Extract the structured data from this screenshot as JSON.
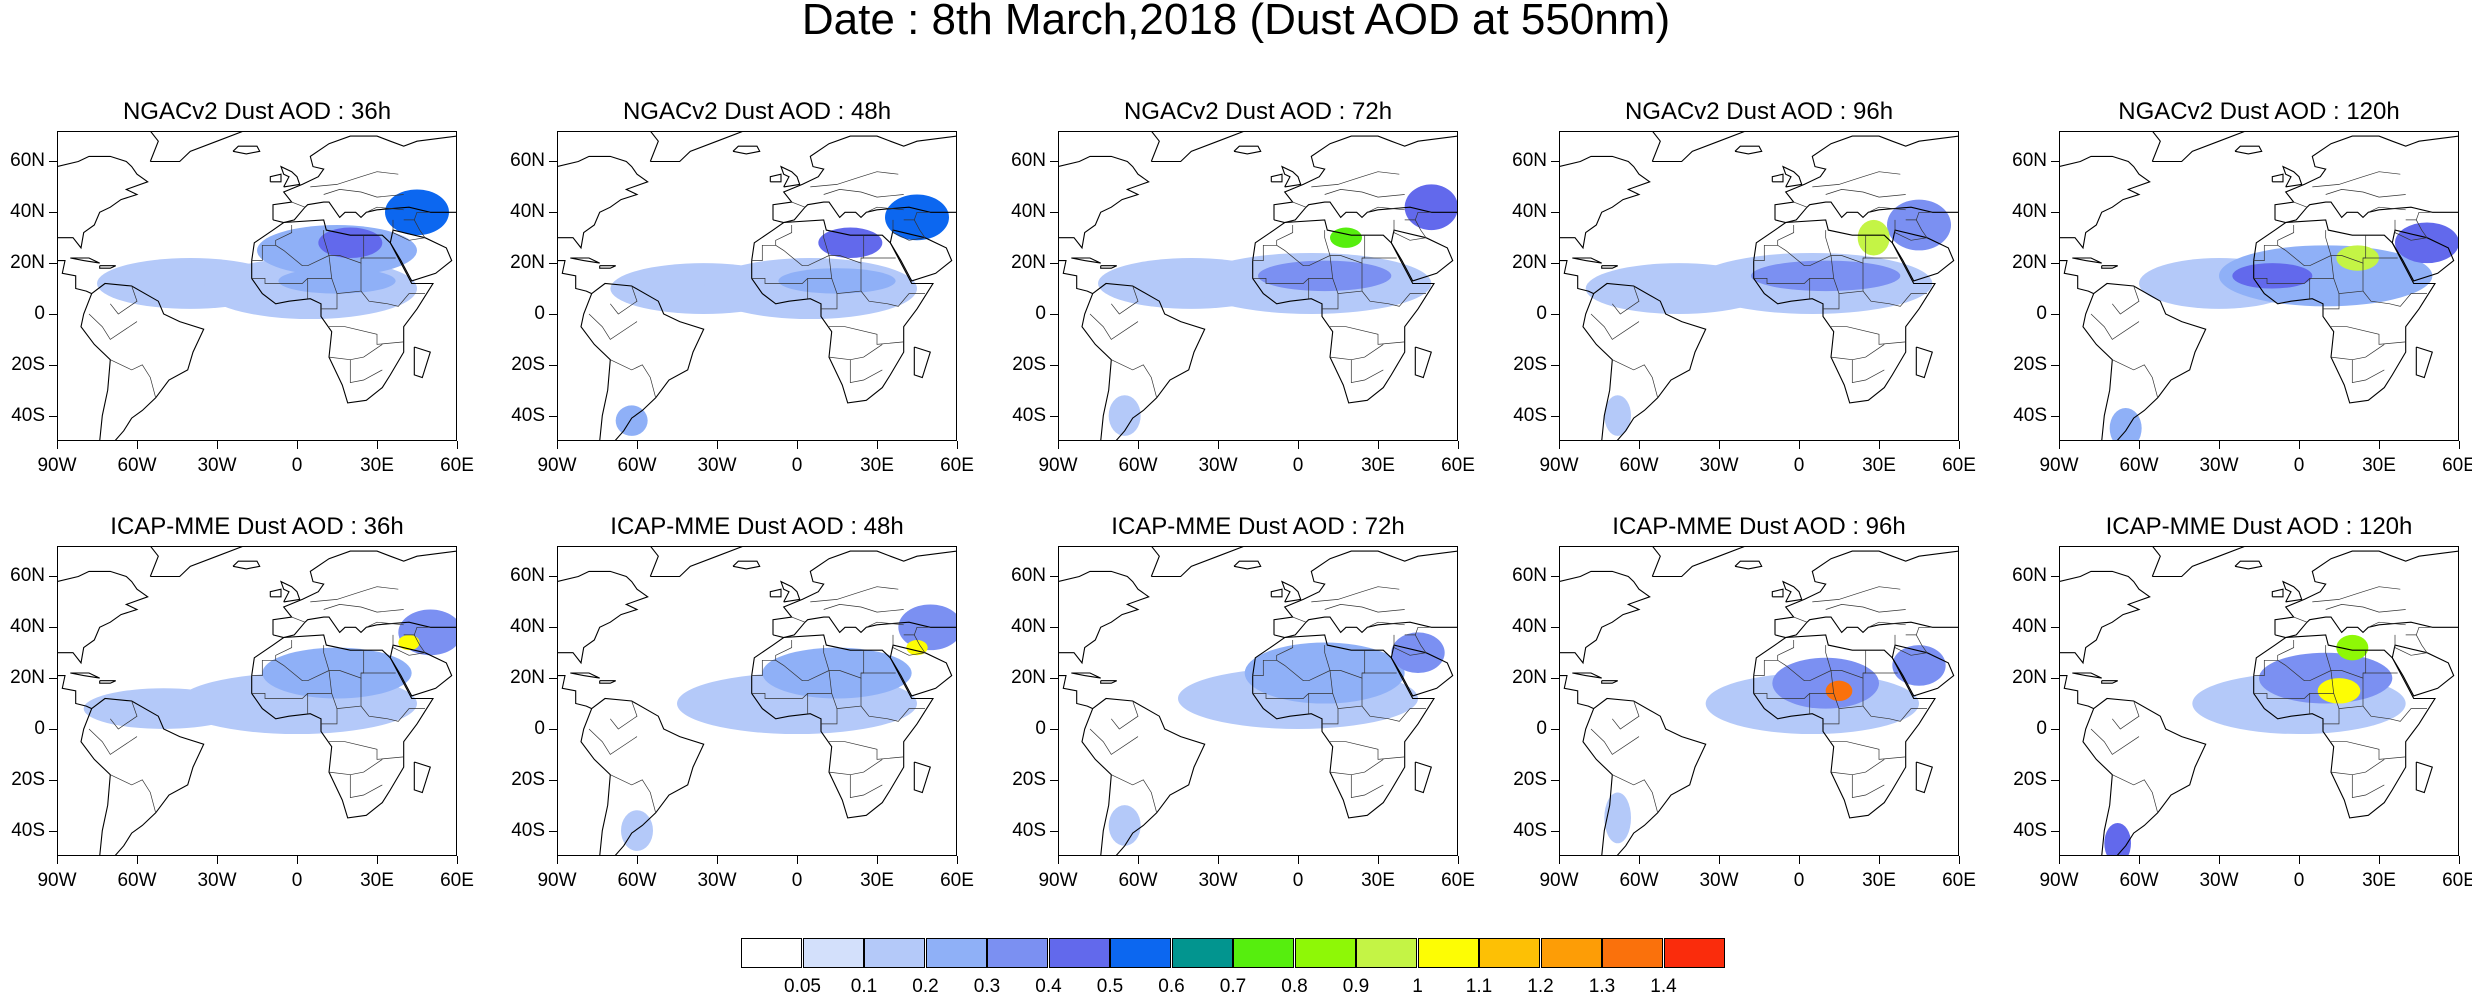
{
  "title": "Date : 8th March,2018 (Dust AOD at 550nm)",
  "panels": [
    {
      "title": "NGACv2 Dust AOD : 36h",
      "plumes": [
        [
          15,
          13,
          22,
          5,
          0.28
        ],
        [
          20,
          28,
          12,
          6,
          0.4
        ],
        [
          45,
          40,
          12,
          9,
          0.5
        ],
        [
          5,
          10,
          40,
          12,
          0.15
        ],
        [
          -40,
          12,
          35,
          10,
          0.12
        ],
        [
          15,
          25,
          30,
          10,
          0.25
        ]
      ]
    },
    {
      "title": "NGACv2 Dust AOD : 48h",
      "plumes": [
        [
          15,
          13,
          22,
          5,
          0.28
        ],
        [
          20,
          28,
          12,
          6,
          0.4
        ],
        [
          45,
          38,
          12,
          9,
          0.5
        ],
        [
          5,
          10,
          40,
          12,
          0.15
        ],
        [
          -35,
          10,
          35,
          10,
          0.12
        ],
        [
          -62,
          -42,
          6,
          6,
          0.22
        ]
      ]
    },
    {
      "title": "NGACv2 Dust AOD : 72h",
      "plumes": [
        [
          10,
          15,
          25,
          6,
          0.35
        ],
        [
          18,
          30,
          6,
          4,
          0.75
        ],
        [
          50,
          42,
          10,
          9,
          0.45
        ],
        [
          5,
          12,
          45,
          12,
          0.15
        ],
        [
          -40,
          12,
          35,
          10,
          0.12
        ],
        [
          -65,
          -40,
          6,
          8,
          0.18
        ]
      ]
    },
    {
      "title": "NGACv2 Dust AOD : 96h",
      "plumes": [
        [
          28,
          30,
          6,
          7,
          0.95
        ],
        [
          10,
          15,
          28,
          6,
          0.35
        ],
        [
          45,
          35,
          12,
          10,
          0.35
        ],
        [
          5,
          12,
          45,
          12,
          0.15
        ],
        [
          -45,
          10,
          35,
          10,
          0.12
        ],
        [
          -68,
          -40,
          5,
          8,
          0.18
        ]
      ]
    },
    {
      "title": "NGACv2 Dust AOD : 120h",
      "plumes": [
        [
          22,
          22,
          8,
          5,
          0.95
        ],
        [
          -10,
          15,
          15,
          5,
          0.4
        ],
        [
          48,
          28,
          12,
          8,
          0.45
        ],
        [
          10,
          15,
          40,
          12,
          0.2
        ],
        [
          -30,
          12,
          30,
          10,
          0.12
        ],
        [
          -65,
          -45,
          6,
          8,
          0.2
        ]
      ]
    },
    {
      "title": "ICAP-MME Dust AOD : 36h",
      "plumes": [
        [
          42,
          34,
          4,
          3,
          1.0
        ],
        [
          15,
          22,
          28,
          10,
          0.25
        ],
        [
          50,
          38,
          12,
          9,
          0.35
        ],
        [
          0,
          10,
          45,
          12,
          0.12
        ],
        [
          -50,
          8,
          30,
          8,
          0.1
        ]
      ]
    },
    {
      "title": "ICAP-MME Dust AOD : 48h",
      "plumes": [
        [
          45,
          32,
          4,
          3,
          1.0
        ],
        [
          15,
          22,
          28,
          10,
          0.25
        ],
        [
          50,
          40,
          12,
          9,
          0.3
        ],
        [
          0,
          10,
          45,
          12,
          0.12
        ],
        [
          -60,
          -40,
          6,
          8,
          0.15
        ]
      ]
    },
    {
      "title": "ICAP-MME Dust AOD : 72h",
      "plumes": [
        [
          10,
          22,
          30,
          12,
          0.28
        ],
        [
          45,
          30,
          10,
          8,
          0.35
        ],
        [
          0,
          12,
          45,
          12,
          0.13
        ],
        [
          -65,
          -38,
          6,
          8,
          0.15
        ]
      ]
    },
    {
      "title": "ICAP-MME Dust AOD : 96h",
      "plumes": [
        [
          15,
          15,
          5,
          4,
          1.3
        ],
        [
          10,
          18,
          20,
          10,
          0.3
        ],
        [
          45,
          25,
          10,
          8,
          0.35
        ],
        [
          5,
          10,
          40,
          12,
          0.12
        ],
        [
          -68,
          -35,
          5,
          10,
          0.15
        ]
      ]
    },
    {
      "title": "ICAP-MME Dust AOD : 120h",
      "plumes": [
        [
          15,
          15,
          8,
          5,
          1.05
        ],
        [
          20,
          32,
          6,
          5,
          0.85
        ],
        [
          10,
          20,
          25,
          10,
          0.3
        ],
        [
          0,
          10,
          40,
          12,
          0.13
        ],
        [
          -68,
          -45,
          5,
          8,
          0.45
        ]
      ]
    }
  ],
  "lat_labels": [
    "60N",
    "40N",
    "20N",
    "0",
    "20S",
    "40S"
  ],
  "lon_labels": [
    "90W",
    "60W",
    "30W",
    "0",
    "30E",
    "60E"
  ],
  "colorbar": {
    "colors": [
      "#ffffff",
      "#d3e0fb",
      "#b4c9f9",
      "#8fb0f7",
      "#7b90f2",
      "#6269ec",
      "#0c67f0",
      "#02958f",
      "#56ee0e",
      "#8ef806",
      "#c4f445",
      "#fdfd04",
      "#fdc005",
      "#fd9d06",
      "#fa710c",
      "#fa2c0c"
    ],
    "labels": [
      "0.05",
      "0.1",
      "0.2",
      "0.3",
      "0.4",
      "0.5",
      "0.6",
      "0.7",
      "0.8",
      "0.9",
      "1",
      "1.1",
      "1.2",
      "1.3",
      "1.4"
    ]
  }
}
